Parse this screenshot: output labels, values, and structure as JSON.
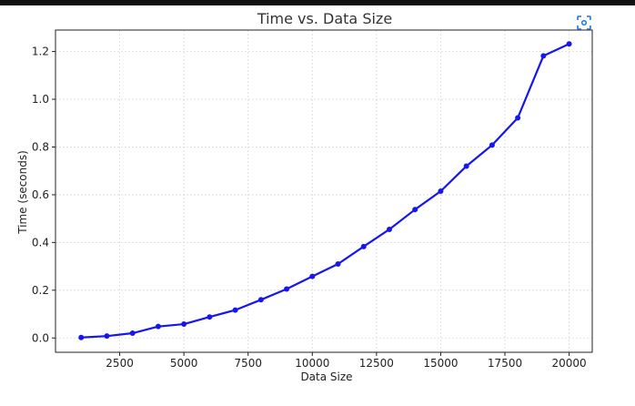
{
  "chart_data": {
    "type": "line",
    "title": "Time vs. Data Size",
    "xlabel": "Data Size",
    "ylabel": "Time (seconds)",
    "xlim": [
      0,
      20900
    ],
    "ylim": [
      -0.06,
      1.29
    ],
    "xticks": [
      2500,
      5000,
      7500,
      10000,
      12500,
      15000,
      17500,
      20000
    ],
    "yticks": [
      0.0,
      0.2,
      0.4,
      0.6,
      0.8,
      1.0,
      1.2
    ],
    "xtick_labels": [
      "2500",
      "5000",
      "7500",
      "10000",
      "12500",
      "15000",
      "17500",
      "20000"
    ],
    "ytick_labels": [
      "0.0",
      "0.2",
      "0.4",
      "0.6",
      "0.8",
      "1.0",
      "1.2"
    ],
    "grid": true,
    "legend": "none",
    "series": [
      {
        "color": "#1616f0",
        "x": [
          1000,
          2000,
          3000,
          4000,
          5000,
          6000,
          7000,
          8000,
          9000,
          10000,
          11000,
          12000,
          13000,
          14000,
          15000,
          16000,
          17000,
          18000,
          19000,
          20000
        ],
        "y": [
          0.002,
          0.008,
          0.02,
          0.048,
          0.058,
          0.088,
          0.117,
          0.16,
          0.205,
          0.258,
          0.31,
          0.383,
          0.455,
          0.538,
          0.615,
          0.72,
          0.808,
          0.922,
          1.182,
          1.232
        ]
      }
    ]
  },
  "icons": {
    "corner": "focus-icon"
  },
  "colors": {
    "grid": "#d9d9d9",
    "line": "#1616f0",
    "icon": "#1a73e8"
  }
}
